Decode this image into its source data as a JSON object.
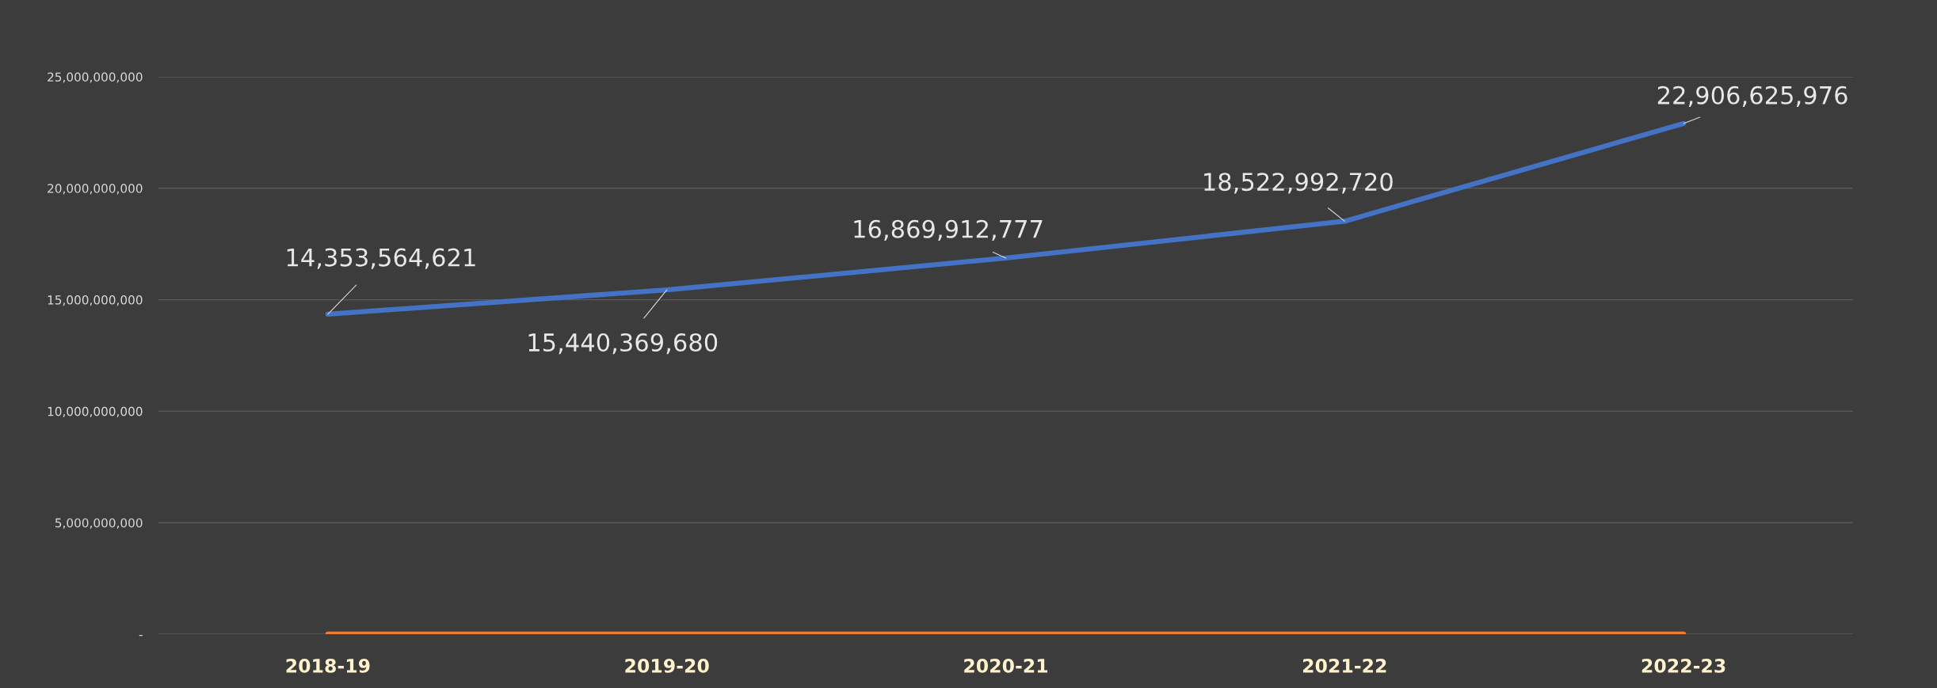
{
  "chart_data": {
    "type": "line",
    "categories": [
      "2018-19",
      "2019-20",
      "2020-21",
      "2021-22",
      "2022-23"
    ],
    "series": [
      {
        "color": "#4472c4",
        "values": [
          14353564621,
          15440369680,
          16869912777,
          18522992720,
          22906625976
        ],
        "value_labels": [
          "14,353,564,621",
          "15,440,369,680",
          "16,869,912,777",
          "18,522,992,720",
          "22,906,625,976"
        ]
      },
      {
        "color": "#ed7d31",
        "values": [
          0,
          0,
          0,
          0,
          0
        ]
      }
    ],
    "ylim": [
      0,
      25000000000
    ],
    "yticks": [
      {
        "value": 0,
        "label": "-"
      },
      {
        "value": 5000000000,
        "label": "5,000,000,000"
      },
      {
        "value": 10000000000,
        "label": "10,000,000,000"
      },
      {
        "value": 15000000000,
        "label": "15,000,000,000"
      },
      {
        "value": 20000000000,
        "label": "20,000,000,000"
      },
      {
        "value": 25000000000,
        "label": "25,000,000,000"
      }
    ],
    "grid": "y",
    "marker": "none",
    "line_style": "solid"
  }
}
